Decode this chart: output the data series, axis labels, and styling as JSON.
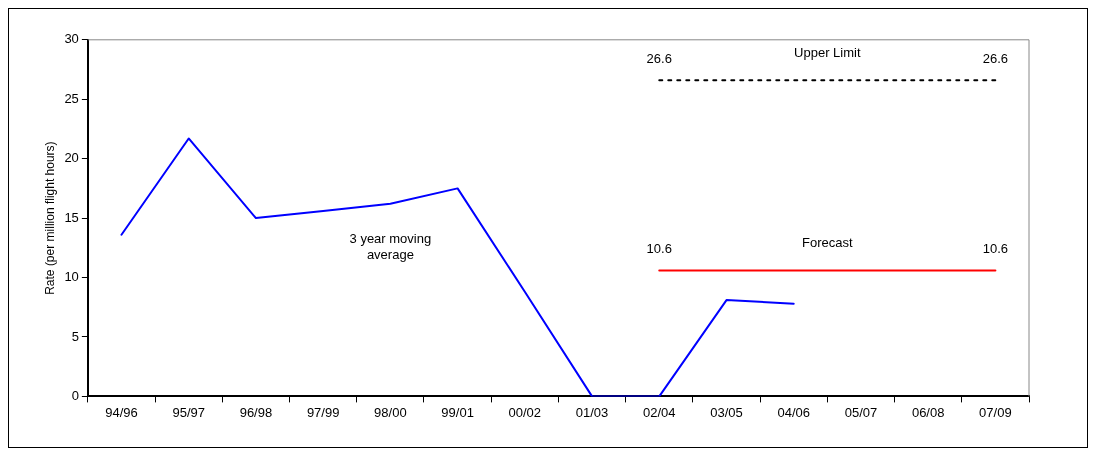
{
  "chart_data": {
    "type": "line",
    "ylabel": "Rate (per million flight hours)",
    "categories": [
      "94/96",
      "95/97",
      "96/98",
      "97/99",
      "98/00",
      "99/01",
      "00/02",
      "01/03",
      "02/04",
      "03/05",
      "04/06",
      "05/07",
      "06/08",
      "07/09"
    ],
    "series": [
      {
        "name": "3 year moving average",
        "color": "#0000ff",
        "values": [
          13.6,
          21.7,
          15.0,
          15.6,
          16.2,
          17.5,
          8.8,
          0,
          0,
          8.1,
          7.8,
          null,
          null,
          null
        ]
      },
      {
        "name": "Forecast",
        "color": "#ff0000",
        "values": [
          null,
          null,
          null,
          null,
          null,
          null,
          null,
          null,
          10.6,
          10.6,
          10.6,
          10.6,
          10.6,
          10.6
        ],
        "value_labels": [
          null,
          null,
          null,
          null,
          null,
          null,
          null,
          null,
          "10.6",
          null,
          null,
          null,
          null,
          "10.6"
        ]
      },
      {
        "name": "Upper Limit",
        "color": "#000000",
        "line_style": "dotted",
        "values": [
          null,
          null,
          null,
          null,
          null,
          null,
          null,
          null,
          26.6,
          26.6,
          26.6,
          26.6,
          26.6,
          26.6
        ],
        "value_labels": [
          null,
          null,
          null,
          null,
          null,
          null,
          null,
          null,
          "26.6",
          null,
          null,
          null,
          null,
          "26.6"
        ]
      }
    ],
    "ylim": [
      0,
      30
    ],
    "yticks": [
      0,
      5,
      10,
      15,
      20,
      25,
      30
    ],
    "grid": false,
    "legend": false,
    "marker": "none"
  }
}
